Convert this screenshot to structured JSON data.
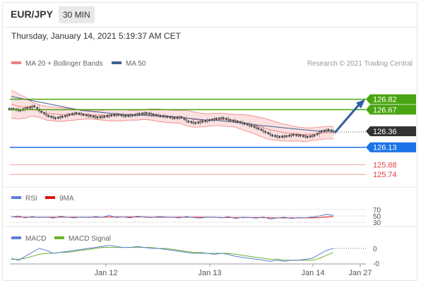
{
  "header": {
    "pair": "EUR/JPY",
    "timeframe": "30 MIN"
  },
  "timestamp": "Thursday, January 14, 2021 5:19:37 AM CET",
  "colors": {
    "candle": "#4a4a4a",
    "bb": "#f08080",
    "bb_fill": "#fbdada",
    "ma50": "#3a5f95",
    "resistance": "#4aa512",
    "support": "#1a73e8",
    "minor": "#e04040",
    "current": "#333333",
    "arrow": "#2f5fa0",
    "rsi": "#5b7fd6",
    "rsi_ma": "#e01010",
    "macd": "#5b7fd6",
    "macd_signal": "#6ab02e"
  },
  "chart_data": [
    {
      "type": "candlestick",
      "legend": [
        {
          "name": "MA 20 + Bollinger Bands",
          "color": "#f08080"
        },
        {
          "name": "MA 50",
          "color": "#3a5f95"
        }
      ],
      "credit": "Research © 2021 Trading Central",
      "x_ticks": [
        "Jan 12",
        "Jan 13",
        "Jan 14",
        "Jan 27"
      ],
      "ylim": [
        125.6,
        127.1
      ],
      "series": [
        {
          "name": "price",
          "values": [
            126.68,
            126.66,
            126.7,
            126.72,
            126.64,
            126.58,
            126.55,
            126.57,
            126.6,
            126.62,
            126.6,
            126.58,
            126.56,
            126.57,
            126.59,
            126.6,
            126.58,
            126.59,
            126.61,
            126.62,
            126.6,
            126.58,
            126.57,
            126.55,
            126.56,
            126.5,
            126.48,
            126.5,
            126.52,
            126.54,
            126.55,
            126.52,
            126.5,
            126.47,
            126.44,
            126.4,
            126.35,
            126.3,
            126.28,
            126.29,
            126.31,
            126.3,
            126.28,
            126.3,
            126.36,
            126.38,
            126.35
          ]
        },
        {
          "name": "MA 20",
          "values": [
            126.75,
            126.72,
            126.7,
            126.68,
            126.65,
            126.62,
            126.61,
            126.6,
            126.6,
            126.6,
            126.6,
            126.6,
            126.59,
            126.59,
            126.59,
            126.59,
            126.59,
            126.59,
            126.59,
            126.6,
            126.6,
            126.59,
            126.58,
            126.57,
            126.57,
            126.55,
            126.53,
            126.52,
            126.52,
            126.53,
            126.53,
            126.52,
            126.51,
            126.49,
            126.47,
            126.44,
            126.41,
            126.38,
            126.36,
            126.34,
            126.33,
            126.32,
            126.31,
            126.32,
            126.33,
            126.34,
            126.34
          ]
        },
        {
          "name": "Upper band",
          "values": [
            126.95,
            126.9,
            126.85,
            126.78,
            126.74,
            126.72,
            126.71,
            126.7,
            126.69,
            126.68,
            126.67,
            126.66,
            126.65,
            126.66,
            126.67,
            126.67,
            126.67,
            126.66,
            126.66,
            126.67,
            126.68,
            126.68,
            126.67,
            126.66,
            126.66,
            126.66,
            126.64,
            126.62,
            126.61,
            126.62,
            126.62,
            126.61,
            126.6,
            126.6,
            126.59,
            126.57,
            126.55,
            126.52,
            126.49,
            126.46,
            126.44,
            126.42,
            126.41,
            126.41,
            126.42,
            126.43,
            126.43
          ]
        },
        {
          "name": "Lower band",
          "values": [
            126.55,
            126.54,
            126.55,
            126.58,
            126.56,
            126.52,
            126.51,
            126.5,
            126.51,
            126.52,
            126.53,
            126.54,
            126.53,
            126.52,
            126.51,
            126.51,
            126.51,
            126.52,
            126.52,
            126.53,
            126.52,
            126.5,
            126.49,
            126.48,
            126.48,
            126.44,
            126.42,
            126.42,
            126.43,
            126.44,
            126.44,
            126.43,
            126.42,
            126.38,
            126.35,
            126.31,
            126.27,
            126.24,
            126.23,
            126.22,
            126.22,
            126.22,
            126.21,
            126.23,
            126.24,
            126.25,
            126.25
          ]
        },
        {
          "name": "MA 50",
          "values": [
            126.86,
            126.84,
            126.82,
            126.8,
            126.78,
            126.76,
            126.74,
            126.72,
            126.7,
            126.68,
            126.66,
            126.65,
            126.64,
            126.63,
            126.62,
            126.61,
            126.6,
            126.6,
            126.59,
            126.59,
            126.58,
            126.58,
            126.57,
            126.57,
            126.56,
            126.55,
            126.54,
            126.53,
            126.52,
            126.52,
            126.51,
            126.5,
            126.49,
            126.48,
            126.47,
            126.45,
            126.44,
            126.43,
            126.42,
            126.41,
            126.4,
            126.39,
            126.38,
            126.37,
            126.36,
            126.36,
            126.36
          ]
        }
      ],
      "levels": [
        {
          "value": 126.82,
          "label": "126.82",
          "kind": "resistance"
        },
        {
          "value": 126.67,
          "label": "126.67",
          "kind": "resistance"
        },
        {
          "value": 126.36,
          "label": "126.36",
          "kind": "current"
        },
        {
          "value": 126.13,
          "label": "126.13",
          "kind": "support"
        },
        {
          "value": 125.88,
          "label": "125.88",
          "kind": "minor"
        },
        {
          "value": 125.74,
          "label": "125.74",
          "kind": "minor"
        }
      ],
      "projection": {
        "from": 126.36,
        "to": 126.82
      }
    },
    {
      "type": "line",
      "legend": [
        {
          "name": "RSI",
          "color": "#5b7fd6"
        },
        {
          "name": "9MA",
          "color": "#e01010"
        }
      ],
      "y_ticks": [
        "70",
        "50",
        "30"
      ],
      "ylim": [
        20,
        80
      ],
      "series": [
        {
          "name": "RSI",
          "values": [
            46,
            50,
            44,
            48,
            45,
            47,
            43,
            49,
            46,
            44,
            47,
            45,
            48,
            46,
            52,
            45,
            47,
            44,
            49,
            46,
            45,
            48,
            47,
            46,
            44,
            48,
            45,
            43,
            47,
            46,
            44,
            48,
            42,
            46,
            45,
            43,
            47,
            40,
            44,
            46,
            42,
            45,
            44,
            47,
            50,
            55,
            52
          ]
        },
        {
          "name": "9MA",
          "values": [
            47,
            47,
            46,
            46,
            46,
            46,
            46,
            46,
            46,
            46,
            46,
            46,
            46,
            46,
            47,
            47,
            47,
            47,
            47,
            47,
            46,
            46,
            46,
            46,
            46,
            46,
            46,
            46,
            46,
            46,
            45,
            45,
            45,
            45,
            45,
            45,
            45,
            44,
            44,
            44,
            44,
            44,
            44,
            44,
            45,
            47,
            48
          ]
        }
      ]
    },
    {
      "type": "line",
      "legend": [
        {
          "name": "MACD",
          "color": "#5b7fd6"
        },
        {
          "name": "MACD Signal",
          "color": "#6ab02e"
        }
      ],
      "y_ticks": [
        "0",
        "-0"
      ],
      "series": [
        {
          "name": "MACD",
          "values": [
            -0.1,
            -0.12,
            -0.08,
            -0.04,
            0.0,
            -0.02,
            -0.05,
            -0.04,
            -0.03,
            -0.02,
            -0.01,
            0.0,
            0.01,
            0.02,
            0.03,
            0.02,
            0.01,
            0.01,
            0.02,
            0.01,
            0.0,
            0.0,
            -0.01,
            -0.02,
            -0.03,
            -0.04,
            -0.05,
            -0.05,
            -0.05,
            -0.06,
            -0.05,
            -0.06,
            -0.08,
            -0.09,
            -0.1,
            -0.11,
            -0.12,
            -0.13,
            -0.12,
            -0.13,
            -0.12,
            -0.12,
            -0.11,
            -0.1,
            -0.06,
            -0.02,
            0.0
          ]
        },
        {
          "name": "MACD Signal",
          "values": [
            -0.11,
            -0.11,
            -0.1,
            -0.08,
            -0.06,
            -0.05,
            -0.05,
            -0.04,
            -0.04,
            -0.03,
            -0.02,
            -0.01,
            0.0,
            0.01,
            0.01,
            0.01,
            0.01,
            0.01,
            0.01,
            0.01,
            0.01,
            0.0,
            0.0,
            -0.01,
            -0.02,
            -0.03,
            -0.04,
            -0.04,
            -0.05,
            -0.05,
            -0.05,
            -0.05,
            -0.06,
            -0.07,
            -0.08,
            -0.09,
            -0.1,
            -0.11,
            -0.11,
            -0.12,
            -0.12,
            -0.12,
            -0.12,
            -0.12,
            -0.1,
            -0.07,
            -0.04
          ]
        }
      ]
    }
  ]
}
